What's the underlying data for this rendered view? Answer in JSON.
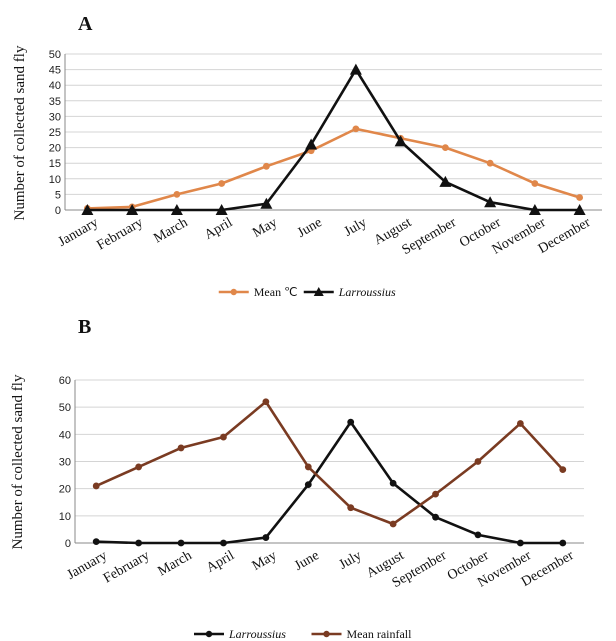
{
  "chart_data": [
    {
      "panel": "A",
      "type": "line",
      "ylabel": "Number of collected sand fly",
      "xlabel": "",
      "ylim": [
        0,
        50
      ],
      "yticks": [
        0,
        5,
        10,
        15,
        20,
        25,
        30,
        35,
        40,
        45,
        50
      ],
      "grid": true,
      "legend_position": "bottom",
      "categories": [
        "January",
        "February",
        "March",
        "April",
        "May",
        "June",
        "July",
        "August",
        "September",
        "October",
        "November",
        "December"
      ],
      "series": [
        {
          "name": "Mean ℃",
          "color": "#e0874a",
          "marker": "circle",
          "italic": false,
          "values": [
            0.5,
            1,
            5,
            8.5,
            14,
            19,
            26,
            23,
            20,
            15,
            8.5,
            4
          ]
        },
        {
          "name": "Larroussius",
          "color": "#111111",
          "marker": "triangle",
          "italic": true,
          "values": [
            0,
            0,
            0,
            0,
            2,
            21,
            45,
            22,
            9,
            2.5,
            0,
            0
          ]
        }
      ]
    },
    {
      "panel": "B",
      "type": "line",
      "ylabel": "Number of collected sand fly",
      "xlabel": "",
      "ylim": [
        0,
        60
      ],
      "yticks": [
        0,
        10,
        20,
        30,
        40,
        50,
        60
      ],
      "grid": true,
      "legend_position": "bottom",
      "categories": [
        "January",
        "February",
        "March",
        "April",
        "May",
        "June",
        "July",
        "August",
        "September",
        "October",
        "November",
        "December"
      ],
      "series": [
        {
          "name": "Larroussius",
          "color": "#111111",
          "marker": "circle",
          "italic": true,
          "values": [
            0.5,
            0,
            0,
            0,
            2,
            21.5,
            44.5,
            22,
            9.5,
            3,
            0,
            0
          ]
        },
        {
          "name": "Mean rainfall",
          "color": "#7a3b22",
          "marker": "circle",
          "italic": false,
          "values": [
            21,
            28,
            35,
            39,
            52,
            28,
            13,
            7,
            18,
            30,
            44,
            27
          ]
        }
      ]
    }
  ]
}
